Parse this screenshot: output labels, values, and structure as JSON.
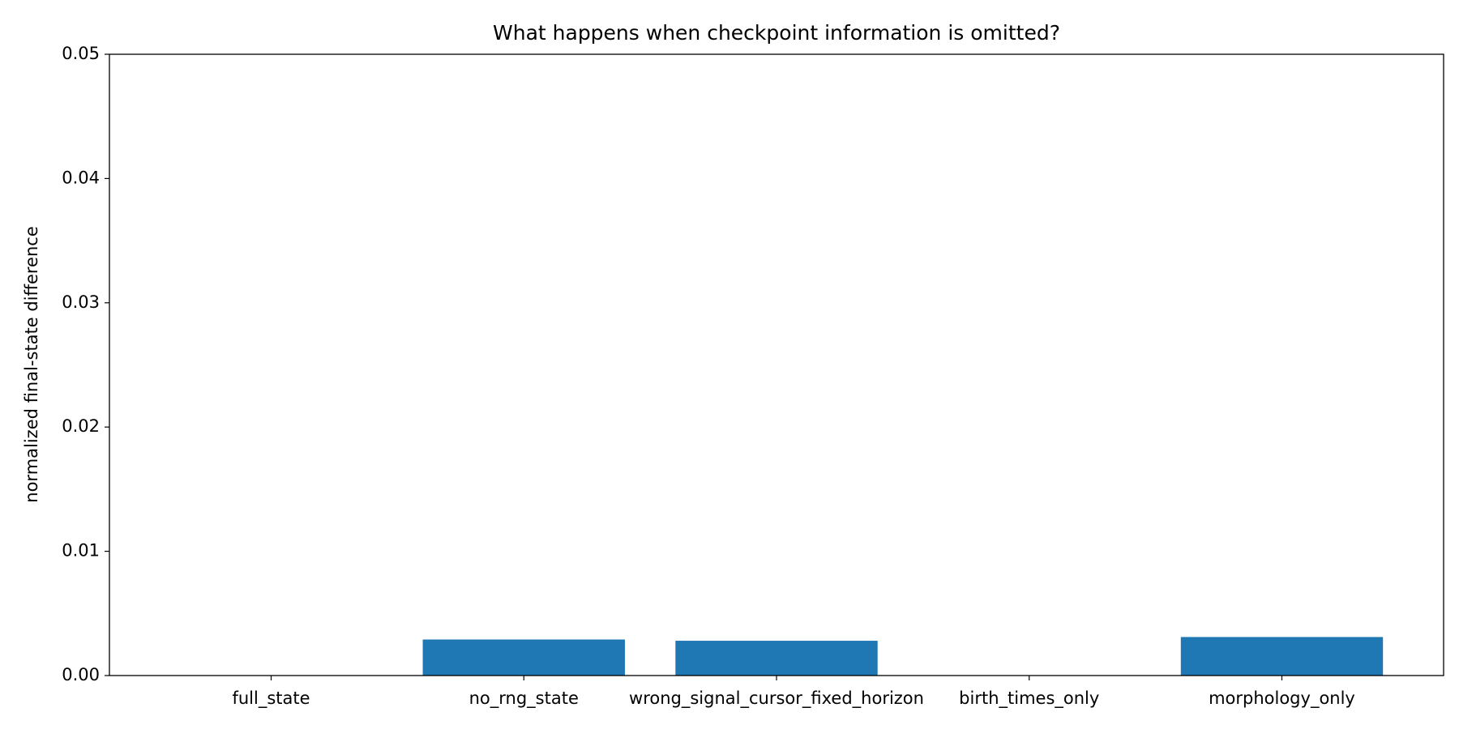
{
  "chart_data": {
    "type": "bar",
    "title": "What happens when checkpoint information is omitted?",
    "y_label": "normalized final-state difference",
    "categories": [
      "full_state",
      "no_rng_state",
      "wrong_signal_cursor_fixed_horizon",
      "birth_times_only",
      "morphology_only"
    ],
    "values": [
      0,
      0.0029,
      0.0028,
      0,
      0.0031
    ],
    "color": "#1f77b4",
    "ylim": [
      0,
      0.05
    ],
    "yticks": [
      {
        "value": 0,
        "label": "0.00"
      },
      0.01,
      0.02,
      0.03,
      0.04,
      0.05
    ],
    "grid": false
  }
}
